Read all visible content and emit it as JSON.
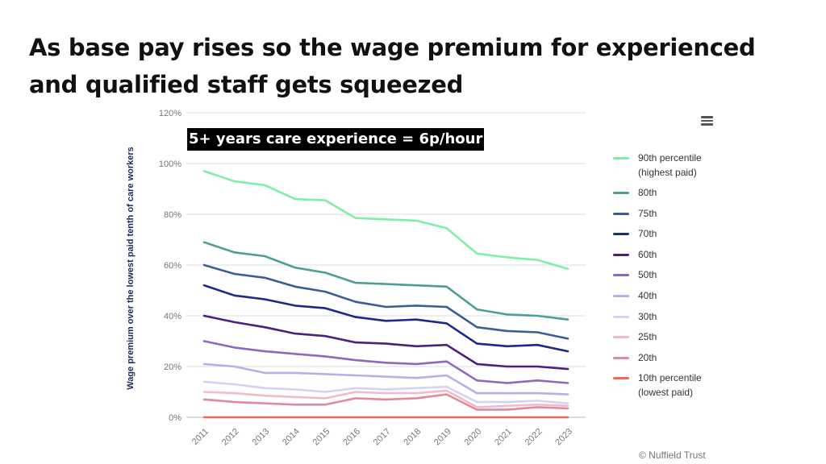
{
  "slide": {
    "title": "As base pay rises so the wage premium for experienced and qualified staff gets squeezed",
    "callout": "5+ years care experience = 6p/hour",
    "credit": "© Nuffield Trust",
    "menu_icon": "hamburger-menu-icon"
  },
  "chart_data": {
    "type": "line",
    "title": "",
    "xlabel": "",
    "ylabel": "Wage premium over the lowest paid tenth of care workers",
    "x": [
      "2011",
      "2012",
      "2013",
      "2014",
      "2015",
      "2016",
      "2017",
      "2018",
      "2019",
      "2020",
      "2021",
      "2022",
      "2023"
    ],
    "yticks": [
      "0%",
      "20%",
      "40%",
      "60%",
      "80%",
      "100%",
      "120%"
    ],
    "ylim": [
      0,
      120
    ],
    "grid": "horizontal",
    "legend_position": "right",
    "series": [
      {
        "name": "90th percentile\n(highest paid)",
        "color": "#7ef0a6",
        "values": [
          97,
          93,
          91.5,
          86,
          85.5,
          78.5,
          78,
          77.5,
          74.5,
          64.5,
          63,
          62,
          58.5
        ]
      },
      {
        "name": "80th",
        "color": "#4e9e95",
        "values": [
          69,
          65,
          63.5,
          59,
          57,
          53,
          52.5,
          52,
          51.5,
          42.5,
          40.5,
          40,
          38.5
        ]
      },
      {
        "name": "75th",
        "color": "#3a5e94",
        "values": [
          60,
          56.5,
          55,
          51.5,
          49.5,
          45.5,
          43.5,
          44,
          43.5,
          35.5,
          34,
          33.5,
          31
        ]
      },
      {
        "name": "70th",
        "color": "#1b2a86",
        "values": [
          52,
          48,
          46.5,
          44,
          43,
          39.5,
          38,
          38.5,
          37,
          29,
          28,
          28.5,
          26
        ]
      },
      {
        "name": "60th",
        "color": "#4b1f80",
        "values": [
          40,
          37.5,
          35.5,
          33,
          32,
          29.5,
          29,
          28,
          28.5,
          21,
          20,
          20,
          19
        ]
      },
      {
        "name": "50th",
        "color": "#8d6ac0",
        "values": [
          30,
          27.5,
          26,
          25,
          24,
          22.5,
          21.5,
          21,
          22,
          14.5,
          13.5,
          14.5,
          13.5
        ]
      },
      {
        "name": "40th",
        "color": "#b4b0e8",
        "values": [
          21,
          20,
          17.5,
          17.5,
          17,
          16.5,
          16,
          15.5,
          16.5,
          9.5,
          9.5,
          9.5,
          9
        ]
      },
      {
        "name": "30th",
        "color": "#d6d2f4",
        "values": [
          14,
          13,
          11.5,
          11,
          10,
          11.5,
          11,
          11.5,
          12,
          6,
          6,
          6.5,
          5.5
        ]
      },
      {
        "name": "25th",
        "color": "#f0bccb",
        "values": [
          10,
          9.5,
          8.5,
          8,
          7.5,
          10,
          9.5,
          9.5,
          10.5,
          4,
          4.5,
          5,
          4.5
        ]
      },
      {
        "name": "20th",
        "color": "#e28a9c",
        "values": [
          7,
          6,
          5.5,
          5,
          5,
          7.5,
          7,
          7.5,
          9,
          3,
          3,
          4,
          3.5
        ]
      },
      {
        "name": "10th percentile\n(lowest paid)",
        "color": "#ee6a55",
        "values": [
          0,
          0,
          0,
          0,
          0,
          0,
          0,
          0,
          0,
          0,
          0,
          0,
          0
        ]
      }
    ]
  }
}
